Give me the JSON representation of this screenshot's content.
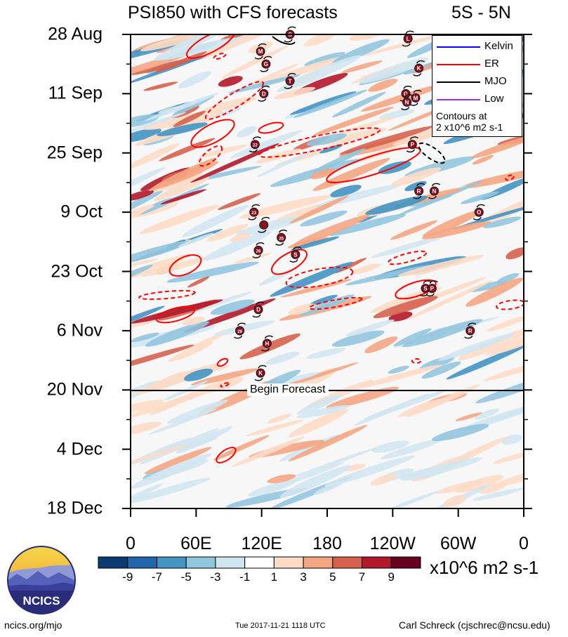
{
  "chart_data": {
    "type": "heatmap",
    "title": "PSI850 with CFS forecasts",
    "latitude_band": "5S - 5N",
    "x_tick_labels": [
      "0",
      "60E",
      "120E",
      "180",
      "120W",
      "60W",
      "0"
    ],
    "y_tick_labels": [
      "28 Aug",
      "11 Sep",
      "25 Sep",
      "9 Oct",
      "23 Oct",
      "6 Nov",
      "20 Nov",
      "4 Dec",
      "18 Dec"
    ],
    "x_range_deg_east": [
      0,
      360
    ],
    "forecast_start": "20 Nov",
    "forecast_label": "Begin Forecast",
    "colorbar": {
      "tick_labels": [
        "-9",
        "-7",
        "-5",
        "-3",
        "-1",
        "1",
        "3",
        "5",
        "7",
        "9"
      ],
      "colors": [
        "#0b3b74",
        "#2166ac",
        "#4393c3",
        "#92c5de",
        "#d1e5f0",
        "#ffffff",
        "#fddbc7",
        "#f4a582",
        "#d6604d",
        "#b2182b",
        "#67001f"
      ],
      "units": "x10^6 m2 s-1"
    },
    "legend": [
      {
        "label": "Kelvin",
        "color": "#0000ff"
      },
      {
        "label": "ER",
        "color": "#ff0000"
      },
      {
        "label": "MJO",
        "color": "#000000"
      },
      {
        "label": "Low",
        "color": "#9933ff"
      }
    ],
    "contour_note": [
      "Contours at",
      "2 x10^6 m2 s-1"
    ],
    "tropical_cyclones": [
      {
        "letter": "S",
        "lon": 146,
        "date": "28 Aug"
      },
      {
        "letter": "L",
        "lon": 254,
        "date": "29 Aug"
      },
      {
        "letter": "M",
        "lon": 119,
        "date": "1 Sep"
      },
      {
        "letter": "G",
        "lon": 124,
        "date": "4 Sep"
      },
      {
        "letter": "K",
        "lon": 264,
        "date": "5 Sep"
      },
      {
        "letter": "T",
        "lon": 146,
        "date": "8 Sep"
      },
      {
        "letter": "D",
        "lon": 122,
        "date": "11 Sep"
      },
      {
        "letter": "G",
        "lon": 252,
        "date": "11 Sep"
      },
      {
        "letter": "M",
        "lon": 261,
        "date": "12 Sep"
      },
      {
        "letter": "N",
        "lon": 253,
        "date": "13 Sep"
      },
      {
        "letter": "22",
        "lon": 114,
        "date": "23 Sep"
      },
      {
        "letter": "P",
        "lon": 258,
        "date": "23 Sep"
      },
      {
        "letter": "R",
        "lon": 264,
        "date": "4 Oct"
      },
      {
        "letter": "N",
        "lon": 278,
        "date": "4 Oct"
      },
      {
        "letter": "23",
        "lon": 113,
        "date": "9 Oct"
      },
      {
        "letter": "O",
        "lon": 319,
        "date": "9 Oct"
      },
      {
        "letter": "",
        "lon": 122,
        "date": "12 Oct"
      },
      {
        "letter": "25",
        "lon": 138,
        "date": "15 Oct"
      },
      {
        "letter": "26",
        "lon": 117,
        "date": "18 Oct"
      },
      {
        "letter": "S",
        "lon": 151,
        "date": "19 Oct"
      },
      {
        "letter": "S",
        "lon": 270,
        "date": "27 Oct"
      },
      {
        "letter": "P",
        "lon": 276,
        "date": "27 Oct"
      },
      {
        "letter": "D",
        "lon": 117,
        "date": "1 Nov"
      },
      {
        "letter": "29",
        "lon": 100,
        "date": "6 Nov"
      },
      {
        "letter": "R",
        "lon": 311,
        "date": "6 Nov"
      },
      {
        "letter": "H",
        "lon": 125,
        "date": "9 Nov"
      },
      {
        "letter": "K",
        "lon": 119,
        "date": "16 Nov"
      }
    ]
  },
  "footer": {
    "left": "ncics.org/mjo",
    "center": "Tue 2017-11-21 1118 UTC",
    "right": "Carl Schreck (cjschrec@ncsu.edu)"
  },
  "logo": {
    "text": "NCICS"
  }
}
